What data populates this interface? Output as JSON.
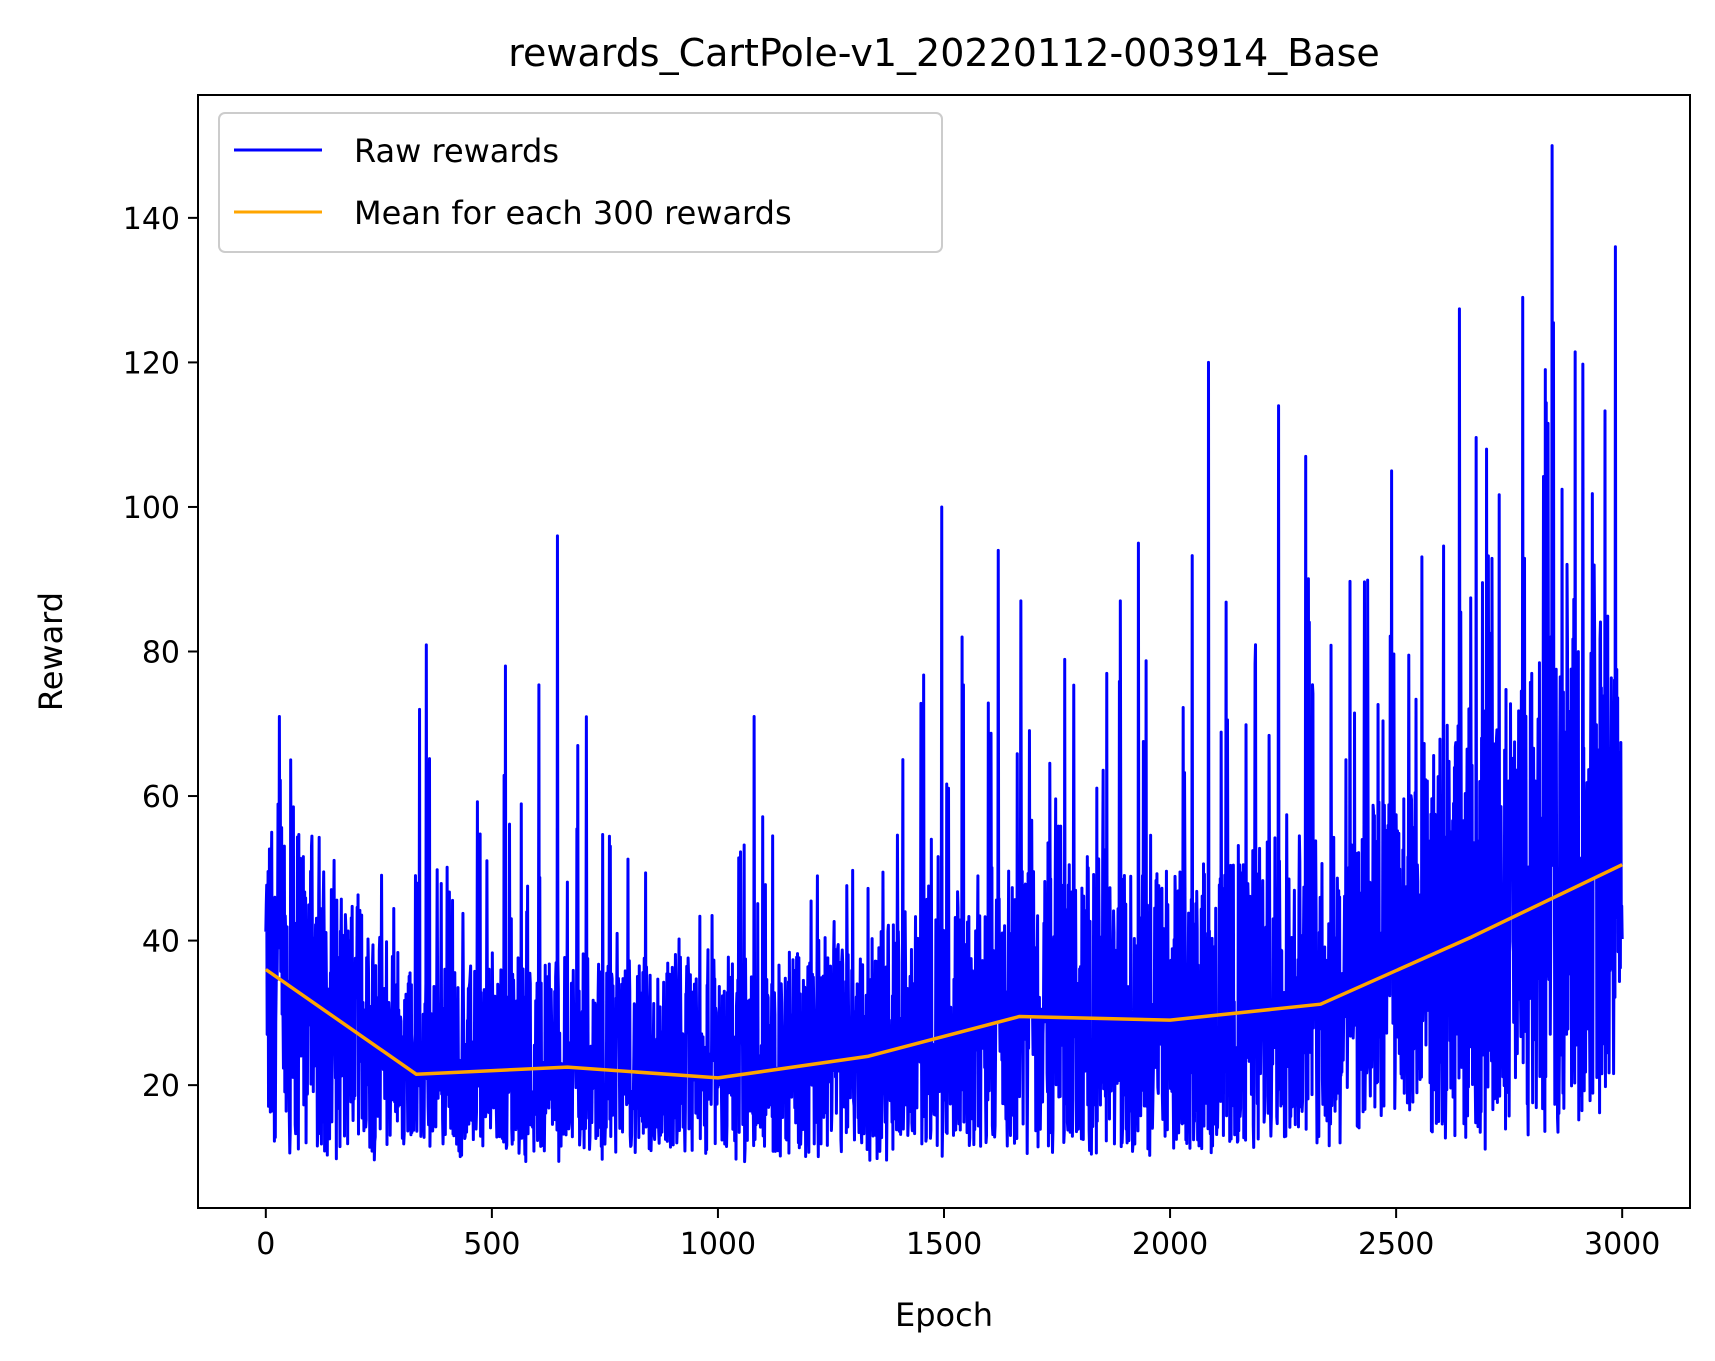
{
  "chart_data": {
    "type": "line",
    "title": "rewards_CartPole-v1_20220112-003914_Base",
    "xlabel": "Epoch",
    "ylabel": "Reward",
    "xlim": [
      -150,
      3150
    ],
    "ylim": [
      3,
      157
    ],
    "xticks": [
      0,
      500,
      1000,
      1500,
      2000,
      2500,
      3000
    ],
    "yticks": [
      20,
      40,
      60,
      80,
      100,
      120,
      140
    ],
    "grid": false,
    "legend_position": "top-left",
    "colors": {
      "raw": "#0000ff",
      "mean": "#ffa500"
    },
    "series": [
      {
        "name": "Raw rewards",
        "color": "#0000ff",
        "description": "noisy per-epoch rewards",
        "n": 3000,
        "envelope": [
          {
            "x": 0,
            "low": 10,
            "high": 46
          },
          {
            "x": 30,
            "low": 10,
            "high": 71
          },
          {
            "x": 55,
            "low": 9,
            "high": 65
          },
          {
            "x": 150,
            "low": 9,
            "high": 51
          },
          {
            "x": 300,
            "low": 10,
            "high": 66
          },
          {
            "x": 350,
            "low": 10,
            "high": 81
          },
          {
            "x": 530,
            "low": 9,
            "high": 78
          },
          {
            "x": 645,
            "low": 9,
            "high": 96
          },
          {
            "x": 900,
            "low": 9,
            "high": 52
          },
          {
            "x": 1080,
            "low": 9,
            "high": 71
          },
          {
            "x": 1300,
            "low": 9,
            "high": 60
          },
          {
            "x": 1495,
            "low": 10,
            "high": 100
          },
          {
            "x": 1620,
            "low": 10,
            "high": 94
          },
          {
            "x": 1900,
            "low": 9,
            "high": 95
          },
          {
            "x": 2085,
            "low": 10,
            "high": 120
          },
          {
            "x": 2240,
            "low": 10,
            "high": 114
          },
          {
            "x": 2500,
            "low": 12,
            "high": 105
          },
          {
            "x": 2650,
            "low": 10,
            "high": 129
          },
          {
            "x": 2780,
            "low": 12,
            "high": 129
          },
          {
            "x": 2845,
            "low": 13,
            "high": 150
          },
          {
            "x": 2985,
            "low": 15,
            "high": 136
          },
          {
            "x": 3000,
            "low": 27,
            "high": 71
          }
        ],
        "peaks": [
          {
            "x": 20,
            "y": 46
          },
          {
            "x": 30,
            "y": 71
          },
          {
            "x": 55,
            "y": 65
          },
          {
            "x": 340,
            "y": 72
          },
          {
            "x": 355,
            "y": 81
          },
          {
            "x": 530,
            "y": 78
          },
          {
            "x": 645,
            "y": 96
          },
          {
            "x": 690,
            "y": 67
          },
          {
            "x": 1080,
            "y": 71
          },
          {
            "x": 1495,
            "y": 100
          },
          {
            "x": 1540,
            "y": 82
          },
          {
            "x": 1620,
            "y": 94
          },
          {
            "x": 1670,
            "y": 87
          },
          {
            "x": 1890,
            "y": 87
          },
          {
            "x": 1930,
            "y": 95
          },
          {
            "x": 2085,
            "y": 120
          },
          {
            "x": 2240,
            "y": 114
          },
          {
            "x": 2300,
            "y": 107
          },
          {
            "x": 2490,
            "y": 105
          },
          {
            "x": 2640,
            "y": 129
          },
          {
            "x": 2700,
            "y": 108
          },
          {
            "x": 2780,
            "y": 129
          },
          {
            "x": 2830,
            "y": 119
          },
          {
            "x": 2845,
            "y": 150
          },
          {
            "x": 2985,
            "y": 136
          }
        ]
      },
      {
        "name": "Mean for each 300 rewards",
        "color": "#ffa500",
        "x": [
          0,
          333,
          667,
          1000,
          1333,
          1667,
          2000,
          2333,
          2667,
          3000
        ],
        "values": [
          36,
          21.5,
          22.5,
          21,
          24,
          29.5,
          29,
          31.2,
          40.5,
          50.5
        ]
      }
    ]
  }
}
